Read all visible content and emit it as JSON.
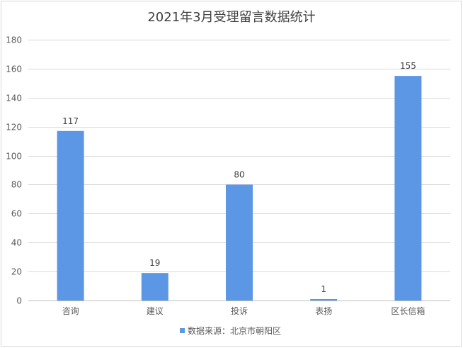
{
  "chart_data": {
    "type": "bar",
    "title": "2021年3月受理留言数据统计",
    "categories": [
      "咨询",
      "建议",
      "投诉",
      "表扬",
      "区长信箱"
    ],
    "series": [
      {
        "name": "数据来源：北京市朝阳区",
        "values": [
          117,
          19,
          80,
          1,
          155
        ],
        "color": "#5B97E5"
      }
    ],
    "ylim": [
      0,
      180
    ],
    "yticks": [
      0,
      20,
      40,
      60,
      80,
      100,
      120,
      140,
      160,
      180
    ],
    "grid": true,
    "data_labels": true,
    "legend": "bottom"
  }
}
